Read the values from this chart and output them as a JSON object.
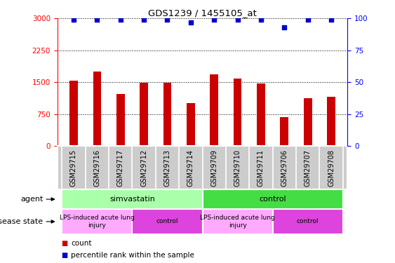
{
  "title": "GDS1239 / 1455105_at",
  "samples": [
    "GSM29715",
    "GSM29716",
    "GSM29717",
    "GSM29712",
    "GSM29713",
    "GSM29714",
    "GSM29709",
    "GSM29710",
    "GSM29711",
    "GSM29706",
    "GSM29707",
    "GSM29708"
  ],
  "counts": [
    1530,
    1750,
    1230,
    1490,
    1490,
    1000,
    1680,
    1580,
    1470,
    680,
    1120,
    1160
  ],
  "percentiles": [
    99,
    99,
    99,
    99,
    99,
    97,
    99,
    99,
    99,
    93,
    99,
    99
  ],
  "bar_color": "#cc0000",
  "dot_color": "#0000cc",
  "ylim_left": [
    0,
    3000
  ],
  "ylim_right": [
    0,
    100
  ],
  "yticks_left": [
    0,
    750,
    1500,
    2250,
    3000
  ],
  "yticks_right": [
    0,
    25,
    50,
    75,
    100
  ],
  "agent_groups": [
    {
      "label": "simvastatin",
      "start": 0,
      "end": 6,
      "color": "#aaffaa"
    },
    {
      "label": "control",
      "start": 6,
      "end": 12,
      "color": "#44dd44"
    }
  ],
  "disease_groups": [
    {
      "label": "LPS-induced acute lung\ninjury",
      "start": 0,
      "end": 3,
      "color": "#ffaaff"
    },
    {
      "label": "control",
      "start": 3,
      "end": 6,
      "color": "#dd44dd"
    },
    {
      "label": "LPS-induced acute lung\ninjury",
      "start": 6,
      "end": 9,
      "color": "#ffaaff"
    },
    {
      "label": "control",
      "start": 9,
      "end": 12,
      "color": "#dd44dd"
    }
  ],
  "legend_items": [
    {
      "label": "count",
      "color": "#cc0000"
    },
    {
      "label": "percentile rank within the sample",
      "color": "#0000cc"
    }
  ],
  "label_agent": "agent",
  "label_disease": "disease state",
  "xtick_bg": "#cccccc",
  "bar_width": 0.35
}
